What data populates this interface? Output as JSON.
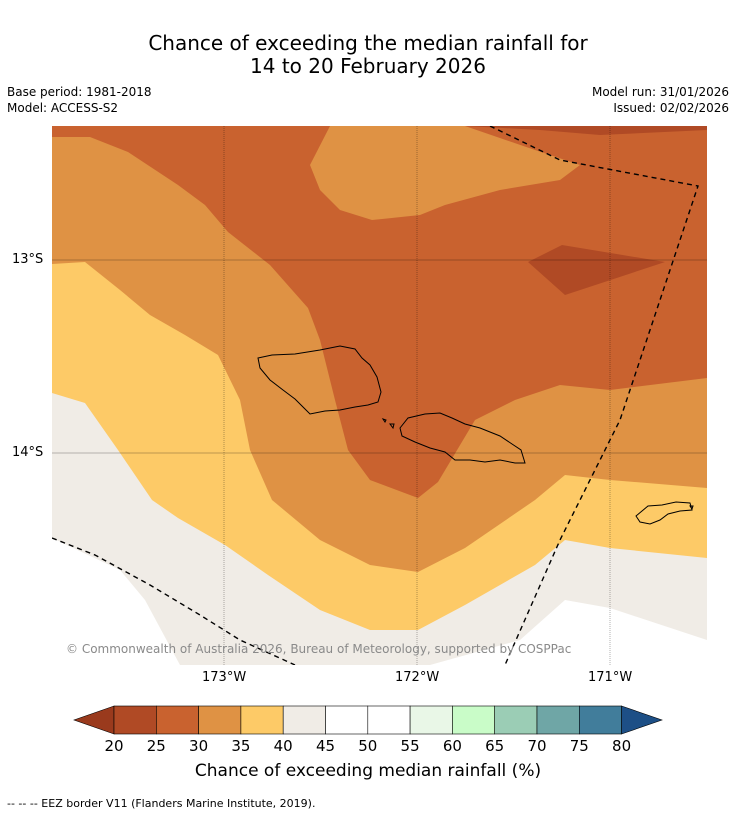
{
  "title": {
    "line1": "Chance of exceeding the median rainfall for",
    "line2": "14 to 20 February 2026"
  },
  "meta": {
    "base_period": "Base period: 1981-2018",
    "model": "Model: ACCESS-S2",
    "model_run": "Model run: 31/01/2026",
    "issued": "Issued: 02/02/2026"
  },
  "map": {
    "lat_labels": [
      "13°S",
      "14°S"
    ],
    "lon_labels": [
      "173°W",
      "172°W",
      "171°W"
    ],
    "copyright": "© Commonwealth of Australia 2026, Bureau of Meteorology, supported by COSPPac",
    "colors": {
      "c20_25": "#b04a25",
      "c25_30": "#c9622f",
      "c30_35": "#df9244",
      "c35_40": "#fdca67",
      "c40_45": "#f0ece6",
      "c45_55": "#ffffff"
    }
  },
  "colorbar": {
    "ticks": [
      "20",
      "25",
      "30",
      "35",
      "40",
      "45",
      "50",
      "55",
      "60",
      "65",
      "70",
      "75",
      "80"
    ],
    "colors": [
      "#b04a25",
      "#c9622f",
      "#df9244",
      "#fdca67",
      "#f0ece6",
      "#ffffff",
      "#ffffff",
      "#e9f7e7",
      "#c9fcc8",
      "#9bcdb5",
      "#6fa6a6",
      "#417d9b"
    ],
    "low_extend": "#9a3a1d",
    "high_extend": "#1d4f86",
    "title": "Chance of exceeding median rainfall (%)"
  },
  "footnote": "--  --  -- EEZ border V11 (Flanders Marine Institute, 2019)."
}
